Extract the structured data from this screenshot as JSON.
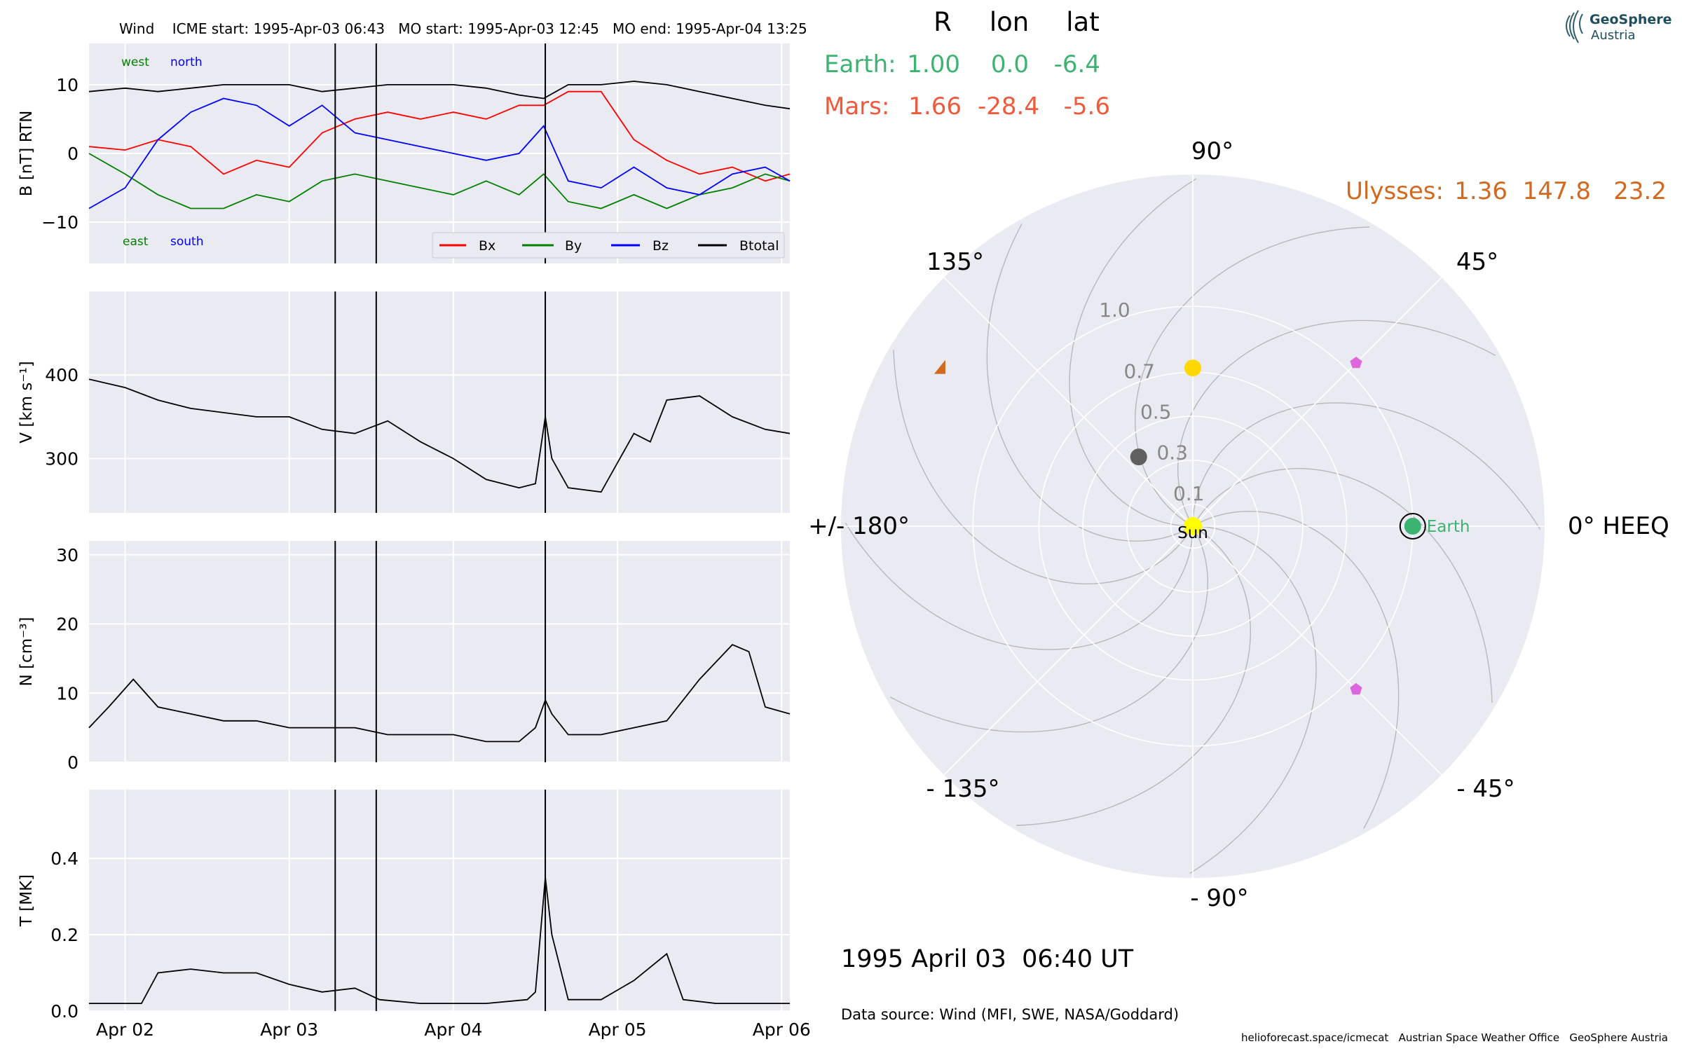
{
  "header": {
    "text": "Wind    ICME start: 1995-Apr-03 06:43   MO start: 1995-Apr-03 12:45   MO end: 1995-Apr-04 13:25"
  },
  "annotations": {
    "west": "west",
    "north": "north",
    "east": "east",
    "south": "south"
  },
  "legend": {
    "bx": "Bx",
    "by": "By",
    "bz": "Bz",
    "btotal": "Btotal"
  },
  "colors": {
    "bx": "#ff0000",
    "by": "#008000",
    "bz": "#0000ff",
    "btotal": "#000000",
    "panel_bg": "#eaeaf2",
    "earth": "#3cb371",
    "mars": "#f05a3c",
    "ulysses": "#d2691e",
    "sun": "#ffff00",
    "venus": "#ffd700",
    "mercury": "#606060",
    "pentagon": "#dd66dd"
  },
  "time_axis": {
    "ticks": [
      "Apr 02",
      "Apr 03",
      "Apr 04",
      "Apr 05",
      "Apr 06"
    ]
  },
  "chart_data": [
    {
      "type": "line",
      "ylabel": "B [nT] RTN",
      "ylim": [
        -16,
        16
      ],
      "yticks": [
        "10",
        "0",
        "−10"
      ],
      "ytick_values": [
        10,
        0,
        -10
      ],
      "xlim_days": [
        1.78,
        6.05
      ],
      "event_lines_days": [
        3.28,
        3.53,
        4.56
      ],
      "series": [
        {
          "name": "Bx",
          "x": [
            1.78,
            2.0,
            2.2,
            2.4,
            2.6,
            2.8,
            3.0,
            3.2,
            3.4,
            3.6,
            3.8,
            4.0,
            4.2,
            4.4,
            4.55,
            4.7,
            4.9,
            5.1,
            5.3,
            5.5,
            5.7,
            5.9,
            6.05
          ],
          "y": [
            1,
            0.5,
            2,
            1,
            -3,
            -1,
            -2,
            3,
            5,
            6,
            5,
            6,
            5,
            7,
            7,
            9,
            9,
            2,
            -1,
            -3,
            -2,
            -4,
            -3
          ]
        },
        {
          "name": "By",
          "x": [
            1.78,
            2.0,
            2.2,
            2.4,
            2.6,
            2.8,
            3.0,
            3.2,
            3.4,
            3.6,
            3.8,
            4.0,
            4.2,
            4.4,
            4.55,
            4.7,
            4.9,
            5.1,
            5.3,
            5.5,
            5.7,
            5.9,
            6.05
          ],
          "y": [
            0,
            -3,
            -6,
            -8,
            -8,
            -6,
            -7,
            -4,
            -3,
            -4,
            -5,
            -6,
            -4,
            -6,
            -3,
            -7,
            -8,
            -6,
            -8,
            -6,
            -5,
            -3,
            -4
          ]
        },
        {
          "name": "Bz",
          "x": [
            1.78,
            2.0,
            2.2,
            2.4,
            2.6,
            2.8,
            3.0,
            3.2,
            3.4,
            3.6,
            3.8,
            4.0,
            4.2,
            4.4,
            4.55,
            4.7,
            4.9,
            5.1,
            5.3,
            5.5,
            5.7,
            5.9,
            6.05
          ],
          "y": [
            -8,
            -5,
            2,
            6,
            8,
            7,
            4,
            7,
            3,
            2,
            1,
            0,
            -1,
            0,
            4,
            -4,
            -5,
            -2,
            -5,
            -6,
            -3,
            -2,
            -4
          ]
        },
        {
          "name": "Btotal",
          "x": [
            1.78,
            2.0,
            2.2,
            2.4,
            2.6,
            2.8,
            3.0,
            3.2,
            3.4,
            3.6,
            3.8,
            4.0,
            4.2,
            4.4,
            4.55,
            4.7,
            4.9,
            5.1,
            5.3,
            5.5,
            5.7,
            5.9,
            6.05
          ],
          "y": [
            9,
            9.5,
            9,
            9.5,
            10,
            10,
            10,
            9,
            9.5,
            10,
            10,
            10,
            9.5,
            8.5,
            8,
            10,
            10,
            10.5,
            10,
            9,
            8,
            7,
            6.5
          ]
        }
      ]
    },
    {
      "type": "line",
      "ylabel": "V [km s⁻¹]",
      "ylim": [
        235,
        500
      ],
      "yticks": [
        "400",
        "300"
      ],
      "ytick_values": [
        400,
        300
      ],
      "series": [
        {
          "name": "",
          "x": [
            1.78,
            2.0,
            2.2,
            2.4,
            2.6,
            2.8,
            3.0,
            3.2,
            3.4,
            3.6,
            3.8,
            4.0,
            4.2,
            4.4,
            4.5,
            4.56,
            4.6,
            4.7,
            4.9,
            5.1,
            5.2,
            5.3,
            5.5,
            5.7,
            5.9,
            6.05
          ],
          "y": [
            395,
            385,
            370,
            360,
            355,
            350,
            350,
            335,
            330,
            345,
            320,
            300,
            275,
            265,
            270,
            350,
            300,
            265,
            260,
            330,
            320,
            370,
            375,
            350,
            335,
            330
          ]
        }
      ]
    },
    {
      "type": "line",
      "ylabel": "N [cm⁻³]",
      "ylim": [
        0,
        32
      ],
      "yticks": [
        "30",
        "20",
        "10",
        "0"
      ],
      "ytick_values": [
        30,
        20,
        10,
        0
      ],
      "series": [
        {
          "name": "",
          "x": [
            1.78,
            1.9,
            2.05,
            2.2,
            2.4,
            2.6,
            2.8,
            3.0,
            3.2,
            3.4,
            3.6,
            3.8,
            4.0,
            4.2,
            4.4,
            4.5,
            4.56,
            4.6,
            4.7,
            4.9,
            5.1,
            5.3,
            5.5,
            5.7,
            5.8,
            5.9,
            6.05
          ],
          "y": [
            5,
            8,
            12,
            8,
            7,
            6,
            6,
            5,
            5,
            5,
            4,
            4,
            4,
            3,
            3,
            5,
            9,
            7,
            4,
            4,
            5,
            6,
            12,
            17,
            16,
            8,
            7
          ]
        }
      ]
    },
    {
      "type": "line",
      "ylabel": "T [MK]",
      "ylim": [
        0,
        0.58
      ],
      "yticks": [
        "0.4",
        "0.2",
        "0.0"
      ],
      "ytick_values": [
        0.4,
        0.2,
        0.0
      ],
      "series": [
        {
          "name": "",
          "x": [
            1.78,
            2.0,
            2.1,
            2.2,
            2.4,
            2.6,
            2.8,
            3.0,
            3.2,
            3.4,
            3.55,
            3.8,
            4.0,
            4.2,
            4.45,
            4.5,
            4.56,
            4.6,
            4.7,
            4.9,
            5.1,
            5.3,
            5.4,
            5.6,
            5.8,
            6.05
          ],
          "y": [
            0.02,
            0.02,
            0.02,
            0.1,
            0.11,
            0.1,
            0.1,
            0.07,
            0.05,
            0.06,
            0.03,
            0.02,
            0.02,
            0.02,
            0.03,
            0.05,
            0.35,
            0.2,
            0.03,
            0.03,
            0.08,
            0.15,
            0.03,
            0.02,
            0.02,
            0.02
          ]
        }
      ]
    },
    {
      "type": "scatter",
      "title": "polar",
      "angle_labels": [
        "90°",
        "45°",
        "0° HEEQ",
        "- 45°",
        "- 90°",
        "- 135°",
        "+/- 180°",
        "135°"
      ],
      "radius_ticks": [
        "0.1",
        "0.3",
        "0.5",
        "0.7",
        "1.0"
      ],
      "radius_values": [
        0.1,
        0.3,
        0.5,
        0.7,
        1.0
      ],
      "rmax": 1.6,
      "objects": [
        {
          "name": "Earth",
          "r": 1.0,
          "lon": 0.0
        },
        {
          "name": "Sun",
          "r": 0.0,
          "lon": 0.0
        },
        {
          "name": "",
          "r": 0.72,
          "lon": 90.0
        },
        {
          "name": "",
          "r": 0.4,
          "lon": 128.0
        },
        {
          "name": "",
          "r": 1.05,
          "lon": 45.0
        },
        {
          "name": "",
          "r": 1.05,
          "lon": -45.0
        },
        {
          "name": "",
          "r": 1.36,
          "lon": 147.8
        }
      ]
    }
  ],
  "positions": {
    "headers": {
      "r": "R",
      "lon": "lon",
      "lat": "lat"
    },
    "earth": {
      "name": "Earth:",
      "r": "1.00",
      "lon": "0.0",
      "lat": "-6.4"
    },
    "mars": {
      "name": "Mars:",
      "r": "1.66",
      "lon": "-28.4",
      "lat": "-5.6"
    },
    "ulysses": {
      "name": "Ulysses:",
      "r": "1.36",
      "lon": "147.8",
      "lat": "23.2"
    }
  },
  "polar_labels": {
    "earth": "Earth",
    "sun": "Sun"
  },
  "footer": {
    "date": "1995 April 03  06:40 UT",
    "source": "Data source: Wind (MFI, SWE, NASA/Goddard)",
    "credits": "helioforecast.space/icmecat   Austrian Space Weather Office   GeoSphere Austria"
  },
  "logo": {
    "line1": "GeoSphere",
    "line2": "Austria"
  }
}
